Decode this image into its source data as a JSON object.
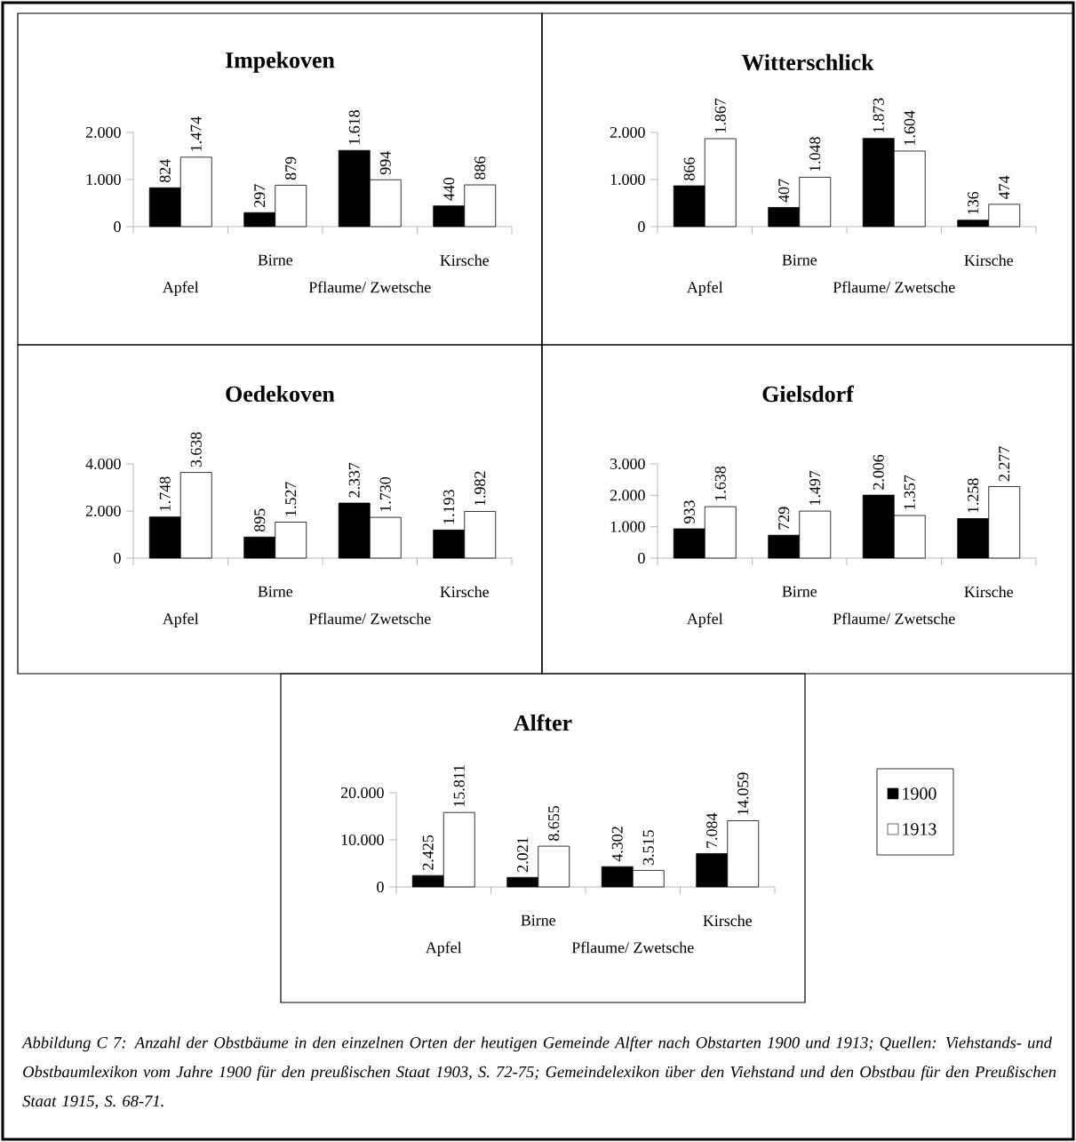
{
  "chart_data": [
    {
      "type": "bar",
      "title": "Impekoven",
      "categories": [
        "Apfel",
        "Birne",
        "Pflaume/ Zwetsche",
        "Kirsche"
      ],
      "ylim": [
        0,
        2000
      ],
      "yticks": [
        0,
        {
          "value": 1000,
          "label": "1.000"
        },
        {
          "value": 2000,
          "label": "2.000"
        }
      ],
      "legend": false,
      "series": [
        {
          "color": "#000000",
          "values": [
            824,
            297,
            1618,
            440
          ],
          "value_labels": [
            "824",
            "297",
            "1.618",
            "440"
          ]
        },
        {
          "color": "#ffffff",
          "values": [
            1474,
            879,
            994,
            886
          ],
          "value_labels": [
            "1.474",
            "879",
            "994",
            "886"
          ]
        }
      ]
    },
    {
      "type": "bar",
      "title": "Witterschlick",
      "categories": [
        "Apfel",
        "Birne",
        "Pflaume/ Zwetsche",
        "Kirsche"
      ],
      "ylim": [
        0,
        2000
      ],
      "yticks": [
        0,
        {
          "value": 1000,
          "label": "1.000"
        },
        {
          "value": 2000,
          "label": "2.000"
        }
      ],
      "legend": false,
      "series": [
        {
          "color": "#000000",
          "values": [
            866,
            407,
            1873,
            136
          ],
          "value_labels": [
            "866",
            "407",
            "1.873",
            "136"
          ]
        },
        {
          "color": "#ffffff",
          "values": [
            1867,
            1048,
            1604,
            474
          ],
          "value_labels": [
            "1.867",
            "1.048",
            "1.604",
            "474"
          ]
        }
      ]
    },
    {
      "type": "bar",
      "title": "Oedekoven",
      "categories": [
        "Apfel",
        "Birne",
        "Pflaume/ Zwetsche",
        "Kirsche"
      ],
      "ylim": [
        0,
        4000
      ],
      "yticks": [
        0,
        {
          "value": 2000,
          "label": "2.000"
        },
        {
          "value": 4000,
          "label": "4.000"
        }
      ],
      "legend": false,
      "series": [
        {
          "color": "#000000",
          "values": [
            1748,
            895,
            2337,
            1193
          ],
          "value_labels": [
            "1.748",
            "895",
            "2.337",
            "1.193"
          ]
        },
        {
          "color": "#ffffff",
          "values": [
            3638,
            1527,
            1730,
            1982
          ],
          "value_labels": [
            "3.638",
            "1.527",
            "1.730",
            "1.982"
          ]
        }
      ]
    },
    {
      "type": "bar",
      "title": "Gielsdorf",
      "categories": [
        "Apfel",
        "Birne",
        "Pflaume/ Zwetsche",
        "Kirsche"
      ],
      "ylim": [
        0,
        3000
      ],
      "yticks": [
        0,
        {
          "value": 1000,
          "label": "1.000"
        },
        {
          "value": 2000,
          "label": "2.000"
        },
        {
          "value": 3000,
          "label": "3.000"
        }
      ],
      "legend": false,
      "series": [
        {
          "color": "#000000",
          "values": [
            933,
            729,
            2006,
            1258
          ],
          "value_labels": [
            "933",
            "729",
            "2.006",
            "1.258"
          ]
        },
        {
          "color": "#ffffff",
          "values": [
            1638,
            1497,
            1357,
            2277
          ],
          "value_labels": [
            "1.638",
            "1.497",
            "1.357",
            "2.277"
          ]
        }
      ]
    },
    {
      "type": "bar",
      "title": "Alfter",
      "categories": [
        "Apfel",
        "Birne",
        "Pflaume/ Zwetsche",
        "Kirsche"
      ],
      "ylim": [
        0,
        20000
      ],
      "yticks": [
        0,
        {
          "value": 10000,
          "label": "10.000"
        },
        {
          "value": 20000,
          "label": "20.000"
        }
      ],
      "legend": "right",
      "series": [
        {
          "name": "1900",
          "color": "#000000",
          "values": [
            2425,
            2021,
            4302,
            7084
          ],
          "value_labels": [
            "2.425",
            "2.021",
            "4.302",
            "7.084"
          ]
        },
        {
          "name": "1913",
          "color": "#ffffff",
          "values": [
            15811,
            8655,
            3515,
            14059
          ],
          "value_labels": [
            "15.811",
            "8.655",
            "3.515",
            "14.059"
          ]
        }
      ],
      "annotations": [
        "Abbildung C 7: Anzahl der Obstbäume in den einzelnen Orten der heutigen Gemeinde Alfter nach Obstarten 1900 und 1913; Quellen: Viehstands- und Obstbaumlexikon vom Jahre 1900 für den preußischen Staat 1903, S. 72-75; Gemeindelexikon über den Viehstand und den Obstbau für den Preußischen Staat 1915, S. 68-71."
      ]
    }
  ]
}
